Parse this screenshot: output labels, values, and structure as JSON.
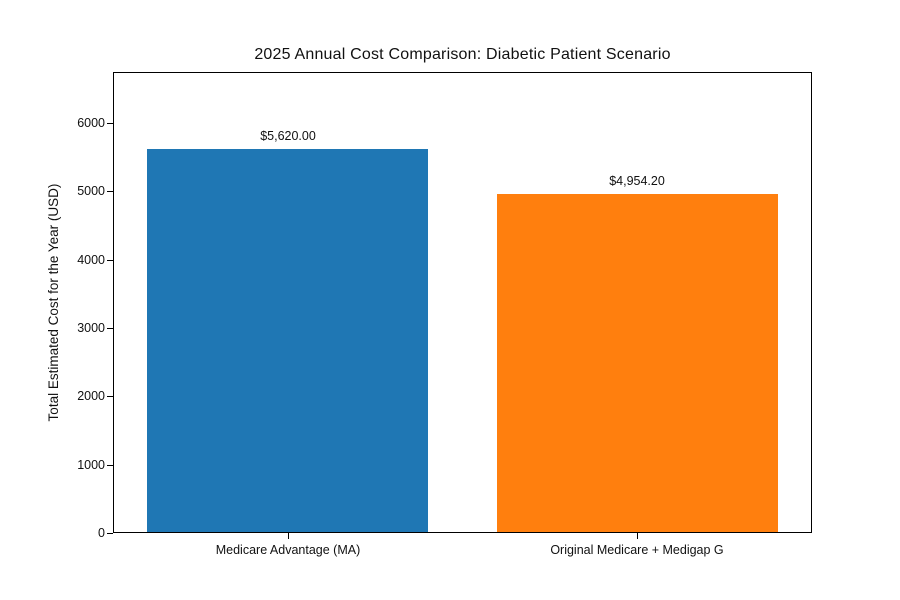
{
  "chart_data": {
    "type": "bar",
    "title": "2025 Annual Cost Comparison: Diabetic Patient Scenario",
    "xlabel": "",
    "ylabel": "Total Estimated Cost for the Year (USD)",
    "categories": [
      "Medicare Advantage (MA)",
      "Original Medicare + Medigap G"
    ],
    "values": [
      5620.0,
      4954.2
    ],
    "bar_labels": [
      "$5,620.00",
      "$4,954.20"
    ],
    "bar_colors": [
      "#1f77b4",
      "#ff7f0e"
    ],
    "yticks": [
      0,
      1000,
      2000,
      3000,
      4000,
      5000,
      6000
    ],
    "ytick_labels": [
      "0",
      "1000",
      "2000",
      "3000",
      "4000",
      "5000",
      "6000"
    ],
    "ylim": [
      0,
      6746
    ],
    "grid": false,
    "legend_position": "none",
    "background_color": "#ffffff"
  }
}
